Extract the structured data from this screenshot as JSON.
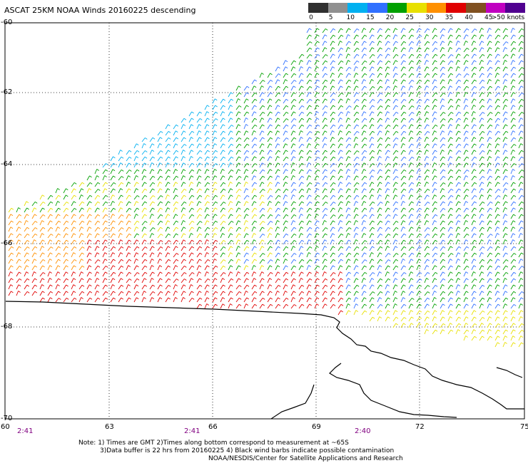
{
  "title": "ASCAT 25KM NOAA Winds 20160225 descending",
  "legend": {
    "labels": [
      "0",
      "5",
      "10",
      "15",
      "20",
      "25",
      "30",
      "35",
      "40",
      "45",
      ">50 knots"
    ],
    "colors": [
      "#303030",
      "#909090",
      "#00b0f0",
      "#3070ff",
      "#00a000",
      "#e8e000",
      "#ff9000",
      "#e00000",
      "#805020",
      "#c000c0",
      "#500090"
    ]
  },
  "lat_labels": [
    "-60",
    "-62",
    "-64",
    "-66",
    "-68",
    "-70"
  ],
  "lon_labels": [
    "60",
    "63",
    "66",
    "69",
    "72",
    "75"
  ],
  "time_labels": [
    "2:41",
    "2:41",
    "2:40"
  ],
  "notes": [
    "Note: 1) Times are GMT 2)Times along bottom correspond to measurement at ~65S",
    "3)Data buffer is 22 hrs from 20160225 4) Black wind barbs indicate possible contamination",
    "NOAA/NESDIS/Center for Satellite Applications and Research"
  ]
}
